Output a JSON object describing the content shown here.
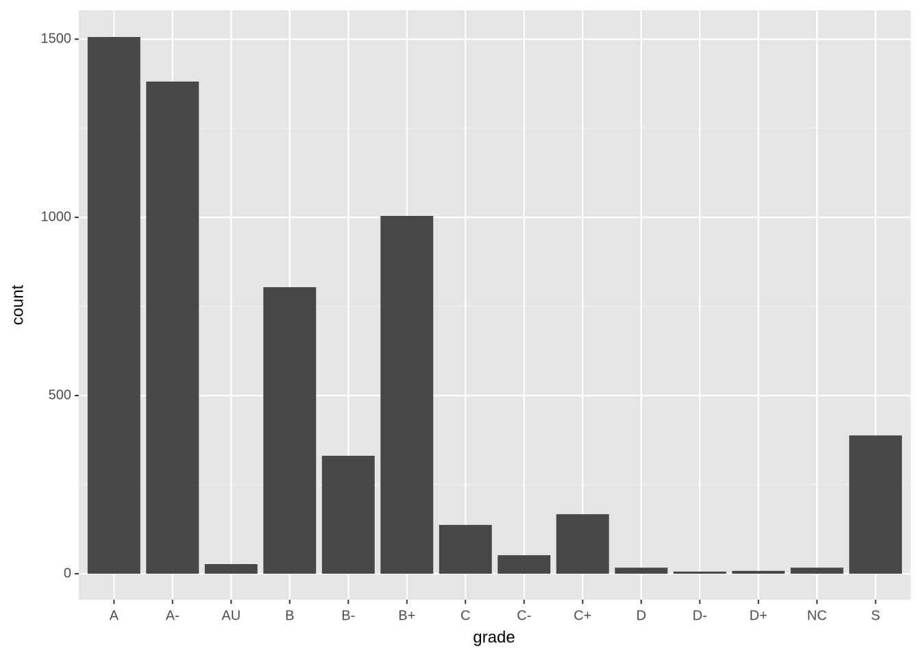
{
  "chart_data": {
    "type": "bar",
    "x_label": "grade",
    "y_label": "count",
    "categories": [
      "A",
      "A-",
      "AU",
      "B",
      "B-",
      "B+",
      "C",
      "C-",
      "C+",
      "D",
      "D-",
      "D+",
      "NC",
      "S"
    ],
    "values": [
      1506,
      1381,
      27,
      804,
      331,
      1004,
      137,
      52,
      167,
      17,
      6,
      8,
      17,
      388
    ],
    "color": "#474747",
    "ylim": [
      -73,
      1581
    ],
    "yticks": [
      0,
      500,
      1000,
      1500
    ],
    "grid": true
  }
}
